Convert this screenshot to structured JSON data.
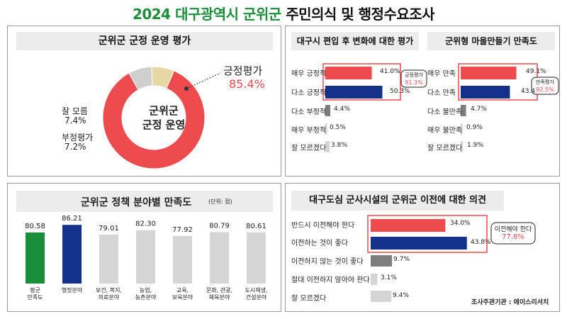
{
  "title_year": "2024",
  "title_place": "대구광역시 군위군",
  "title_rest": "주민의식 및 행정수요조사",
  "colors": {
    "red": "#ee4b4f",
    "navy": "#13318a",
    "gray": "#7d7d7d",
    "light": "#d5d5d5",
    "green": "#1b8e3a",
    "beige": "#e6d7a3",
    "donutgray": "#cfcfcf"
  },
  "panel1": {
    "header": "군위군 군정 운영 평가",
    "center_line1": "군위군",
    "center_line2": "군정 운영",
    "positive_label": "긍정평가",
    "positive_value": "85.4%",
    "unknown_label": "잘 모름",
    "unknown_value": "7.4%",
    "negative_label": "부정평가",
    "negative_value": "7.2%"
  },
  "panel2": {
    "header": "대구시 편입 후 변화에 대한 평가",
    "callout_label": "긍정평가",
    "callout_value": "91.3%",
    "rows": [
      {
        "label": "매우 긍정적",
        "value": "41.0%"
      },
      {
        "label": "다소 긍정적",
        "value": "50.3%"
      },
      {
        "label": "다소 부정적",
        "value": "4.4%"
      },
      {
        "label": "매우 부정적",
        "value": "0.5%"
      },
      {
        "label": "잘 모르겠다",
        "value": "3.8%"
      }
    ]
  },
  "panel3": {
    "header": "군위형 마을만들기 만족도",
    "callout_label": "만족평가",
    "callout_value": "92.5%",
    "rows": [
      {
        "label": "매우 만족",
        "value": "49.1%"
      },
      {
        "label": "다소 만족",
        "value": "43.4"
      },
      {
        "label": "다소 불만족",
        "value": "4.7%"
      },
      {
        "label": "매우 불만족",
        "value": "0.9%"
      },
      {
        "label": "잘 모르겠다",
        "value": "1.9%"
      }
    ]
  },
  "panel4": {
    "header": "군위군 정책 분야별 만족도",
    "unit": "(단위: 점)",
    "bars": [
      {
        "value": "80.58",
        "label1": "평균",
        "label2": "만족도"
      },
      {
        "value": "86.21",
        "label1": "행정분야",
        "label2": ""
      },
      {
        "value": "79.01",
        "label1": "보건, 복지,",
        "label2": "의료분야"
      },
      {
        "value": "82.30",
        "label1": "농업,",
        "label2": "농촌분야"
      },
      {
        "value": "77.92",
        "label1": "교육,",
        "label2": "보육분야"
      },
      {
        "value": "80.79",
        "label1": "문화, 관광,",
        "label2": "체육분야"
      },
      {
        "value": "80.61",
        "label1": "도시재생,",
        "label2": "건설분야"
      }
    ]
  },
  "panel5": {
    "header": "대구도심 군사시설의 군위군 이전에 대한  의견",
    "callout_label": "이전해야 한다",
    "callout_value": "77.8%",
    "rows": [
      {
        "label": "반드시 이전해야 한다",
        "value": "34.0%"
      },
      {
        "label": "이전하는 것이 좋다",
        "value": "43.8%"
      },
      {
        "label": "이전하지 않는 것이 좋다",
        "value": "9.7%"
      },
      {
        "label": "절대 이전하지 말아야 한다",
        "value": "3.1%"
      },
      {
        "label": "잘 모르겠다",
        "value": "9.4%"
      }
    ],
    "source": "조사주관기관 : 에이스리서치"
  },
  "chart_data": [
    {
      "type": "pie",
      "title": "군위군 군정 운영 평가",
      "categories": [
        "긍정평가",
        "잘 모름",
        "부정평가"
      ],
      "values": [
        85.4,
        7.4,
        7.2
      ],
      "unit": "%"
    },
    {
      "type": "bar",
      "orientation": "horizontal",
      "title": "대구시 편입 후 변화에 대한 평가",
      "categories": [
        "매우 긍정적",
        "다소 긍정적",
        "다소 부정적",
        "매우 부정적",
        "잘 모르겠다"
      ],
      "values": [
        41.0,
        50.3,
        4.4,
        0.5,
        3.8
      ],
      "unit": "%",
      "annotation": "긍정평가 91.3%"
    },
    {
      "type": "bar",
      "orientation": "horizontal",
      "title": "군위형 마을만들기 만족도",
      "categories": [
        "매우 만족",
        "다소 만족",
        "다소 불만족",
        "매우 불만족",
        "잘 모르겠다"
      ],
      "values": [
        49.1,
        43.4,
        4.7,
        0.9,
        1.9
      ],
      "unit": "%",
      "annotation": "만족평가 92.5%"
    },
    {
      "type": "bar",
      "orientation": "vertical",
      "title": "군위군 정책 분야별 만족도",
      "unit": "(단위: 점)",
      "categories": [
        "평균 만족도",
        "행정분야",
        "보건, 복지, 의료분야",
        "농업, 농촌분야",
        "교육, 보육분야",
        "문화, 관광, 체육분야",
        "도시재생, 건설분야"
      ],
      "values": [
        80.58,
        86.21,
        79.01,
        82.3,
        77.92,
        80.79,
        80.61
      ]
    },
    {
      "type": "bar",
      "orientation": "horizontal",
      "title": "대구도심 군사시설의 군위군 이전에 대한 의견",
      "categories": [
        "반드시 이전해야 한다",
        "이전하는 것이 좋다",
        "이전하지 않는 것이 좋다",
        "절대 이전하지 말아야 한다",
        "잘 모르겠다"
      ],
      "values": [
        34.0,
        43.8,
        9.7,
        3.1,
        9.4
      ],
      "unit": "%",
      "annotation": "이전해야 한다 77.8%"
    }
  ]
}
